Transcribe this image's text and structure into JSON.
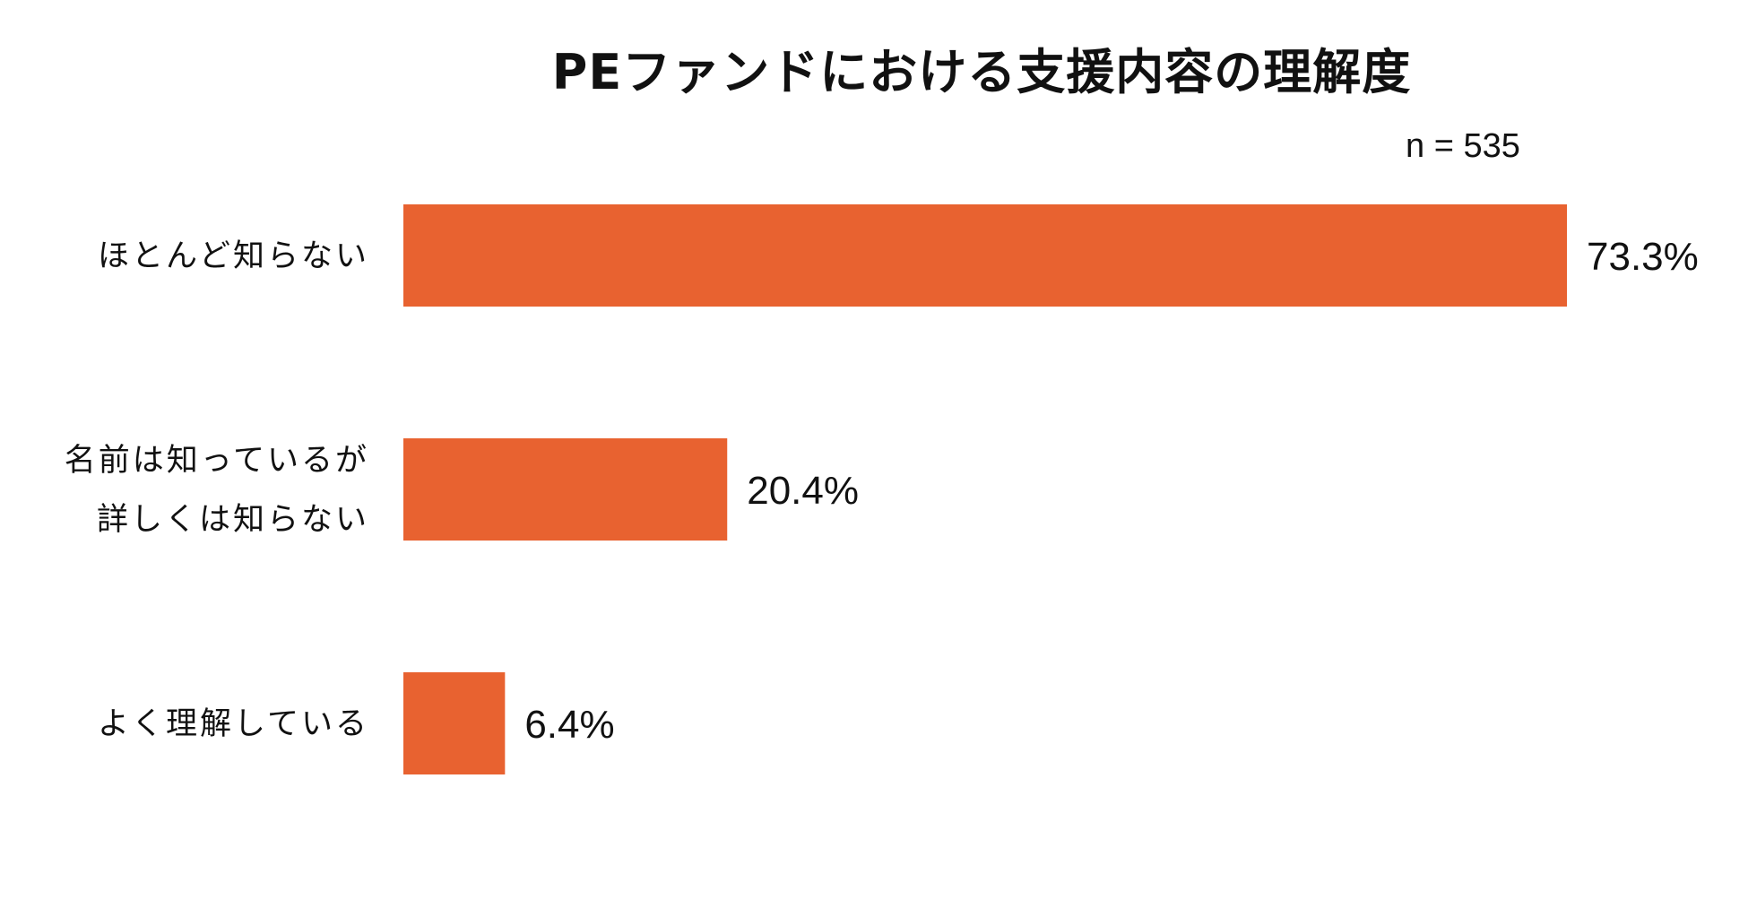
{
  "header": {
    "title": "PEファンドにおける支援内容の理解度",
    "sample_size": "n = 535"
  },
  "chart_data": {
    "type": "bar",
    "orientation": "horizontal",
    "title": "PEファンドにおける支援内容の理解度",
    "subtitle": "n = 535",
    "categories": [
      [
        "ほとんど知らない"
      ],
      [
        "名前は知っているが",
        "詳しくは知らない"
      ],
      [
        "よく理解している"
      ]
    ],
    "values": [
      73.3,
      20.4,
      6.4
    ],
    "value_labels": [
      "73.3%",
      "20.4%",
      "6.4%"
    ],
    "unit": "%",
    "xlim": [
      0,
      73.3
    ],
    "grid": false,
    "bar_color": "#E86230"
  }
}
